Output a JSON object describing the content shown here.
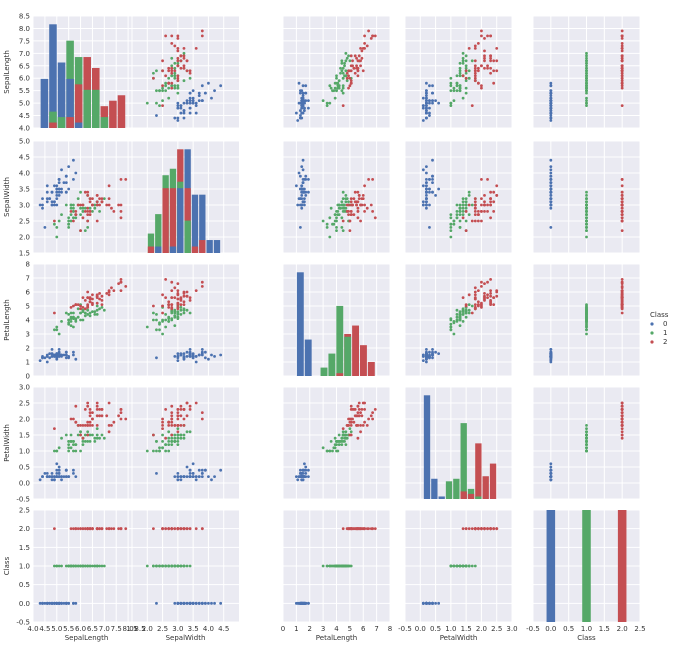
{
  "chart_data": {
    "type": "scatter",
    "title": "",
    "variables": [
      "SepalLength",
      "SepalWidth",
      "PetalLength",
      "PetalWidth",
      "Class"
    ],
    "axes": {
      "SepalLength": {
        "label": "SepalLength",
        "lim": [
          4.0,
          8.5
        ],
        "ticks": [
          4.0,
          4.5,
          5.0,
          5.5,
          6.0,
          6.5,
          7.0,
          7.5,
          8.0,
          8.5
        ],
        "tick_labels": [
          "4.0",
          "4.5",
          "5.0",
          "5.5",
          "6.0",
          "6.5",
          "7.0",
          "7.5",
          "8.0",
          "8.5"
        ]
      },
      "SepalWidth": {
        "label": "SepalWidth",
        "lim": [
          1.5,
          5.0
        ],
        "ticks": [
          1.5,
          2.0,
          2.5,
          3.0,
          3.5,
          4.0,
          4.5,
          5.0
        ],
        "tick_labels": [
          "1.5",
          "2.0",
          "2.5",
          "3.0",
          "3.5",
          "4.0",
          "4.5",
          "5.0"
        ],
        "x_ticks": [
          1.5,
          2.0,
          2.5,
          3.0,
          3.5,
          4.0,
          4.5
        ],
        "x_tick_labels": [
          "1.5",
          "2.0",
          "2.5",
          "3.0",
          "3.5",
          "4.0",
          "4.5"
        ]
      },
      "PetalLength": {
        "label": "PetalLength",
        "lim": [
          0,
          8
        ],
        "ticks": [
          0,
          1,
          2,
          3,
          4,
          5,
          6,
          7,
          8
        ],
        "tick_labels": [
          "0",
          "1",
          "2",
          "3",
          "4",
          "5",
          "6",
          "7",
          "8"
        ]
      },
      "PetalWidth": {
        "label": "PetalWidth",
        "lim": [
          -0.5,
          3.0
        ],
        "ticks": [
          -0.5,
          0.0,
          0.5,
          1.0,
          1.5,
          2.0,
          2.5,
          3.0
        ],
        "tick_labels": [
          "-0.5",
          "0.0",
          "0.5",
          "1.0",
          "1.5",
          "2.0",
          "2.5",
          "3.0"
        ]
      },
      "Class": {
        "label": "Class",
        "lim": [
          -0.5,
          2.5
        ],
        "ticks": [
          -0.5,
          0.0,
          0.5,
          1.0,
          1.5,
          2.0,
          2.5
        ],
        "tick_labels": [
          "-0.5",
          "0.0",
          "0.5",
          "1.0",
          "1.5",
          "2.0",
          "2.5"
        ]
      }
    },
    "series": [
      {
        "name": "0",
        "color": "#4c72b0",
        "points": [
          [
            5.1,
            3.5,
            1.4,
            0.2
          ],
          [
            4.9,
            3.0,
            1.4,
            0.2
          ],
          [
            4.7,
            3.2,
            1.3,
            0.2
          ],
          [
            4.6,
            3.1,
            1.5,
            0.2
          ],
          [
            5.0,
            3.6,
            1.4,
            0.2
          ],
          [
            5.4,
            3.9,
            1.7,
            0.4
          ],
          [
            4.6,
            3.4,
            1.4,
            0.3
          ],
          [
            5.0,
            3.4,
            1.5,
            0.2
          ],
          [
            4.4,
            2.9,
            1.4,
            0.2
          ],
          [
            4.9,
            3.1,
            1.5,
            0.1
          ],
          [
            5.4,
            3.7,
            1.5,
            0.2
          ],
          [
            4.8,
            3.4,
            1.6,
            0.2
          ],
          [
            4.8,
            3.0,
            1.4,
            0.1
          ],
          [
            4.3,
            3.0,
            1.1,
            0.1
          ],
          [
            5.8,
            4.0,
            1.2,
            0.2
          ],
          [
            5.7,
            4.4,
            1.5,
            0.4
          ],
          [
            5.4,
            3.9,
            1.3,
            0.4
          ],
          [
            5.1,
            3.5,
            1.4,
            0.3
          ],
          [
            5.7,
            3.8,
            1.7,
            0.3
          ],
          [
            5.1,
            3.8,
            1.5,
            0.3
          ],
          [
            5.4,
            3.4,
            1.7,
            0.2
          ],
          [
            5.1,
            3.7,
            1.5,
            0.4
          ],
          [
            4.6,
            3.6,
            1.0,
            0.2
          ],
          [
            5.1,
            3.3,
            1.7,
            0.5
          ],
          [
            4.8,
            3.4,
            1.9,
            0.2
          ],
          [
            5.0,
            3.0,
            1.6,
            0.2
          ],
          [
            5.0,
            3.4,
            1.6,
            0.4
          ],
          [
            5.2,
            3.5,
            1.5,
            0.2
          ],
          [
            5.2,
            3.4,
            1.4,
            0.2
          ],
          [
            4.7,
            3.2,
            1.6,
            0.2
          ],
          [
            4.8,
            3.1,
            1.6,
            0.2
          ],
          [
            5.4,
            3.4,
            1.5,
            0.4
          ],
          [
            5.2,
            4.1,
            1.5,
            0.1
          ],
          [
            5.5,
            4.2,
            1.4,
            0.2
          ],
          [
            4.9,
            3.1,
            1.5,
            0.2
          ],
          [
            5.0,
            3.2,
            1.2,
            0.2
          ],
          [
            5.5,
            3.5,
            1.3,
            0.2
          ],
          [
            4.9,
            3.6,
            1.4,
            0.1
          ],
          [
            4.4,
            3.0,
            1.3,
            0.2
          ],
          [
            5.1,
            3.4,
            1.5,
            0.2
          ],
          [
            5.0,
            3.5,
            1.3,
            0.3
          ],
          [
            4.5,
            2.3,
            1.3,
            0.3
          ],
          [
            4.4,
            3.2,
            1.3,
            0.2
          ],
          [
            5.0,
            3.5,
            1.6,
            0.6
          ],
          [
            5.1,
            3.8,
            1.9,
            0.4
          ],
          [
            4.8,
            3.0,
            1.4,
            0.3
          ],
          [
            5.1,
            3.8,
            1.6,
            0.2
          ],
          [
            4.6,
            3.2,
            1.4,
            0.2
          ],
          [
            5.3,
            3.7,
            1.5,
            0.2
          ],
          [
            5.0,
            3.3,
            1.4,
            0.2
          ]
        ]
      },
      {
        "name": "1",
        "color": "#55a868",
        "points": [
          [
            7.0,
            3.2,
            4.7,
            1.4
          ],
          [
            6.4,
            3.2,
            4.5,
            1.5
          ],
          [
            6.9,
            3.1,
            4.9,
            1.5
          ],
          [
            5.5,
            2.3,
            4.0,
            1.3
          ],
          [
            6.5,
            2.8,
            4.6,
            1.5
          ],
          [
            5.7,
            2.8,
            4.5,
            1.3
          ],
          [
            6.3,
            3.3,
            4.7,
            1.6
          ],
          [
            4.9,
            2.4,
            3.3,
            1.0
          ],
          [
            6.6,
            2.9,
            4.6,
            1.3
          ],
          [
            5.2,
            2.7,
            3.9,
            1.4
          ],
          [
            5.0,
            2.0,
            3.5,
            1.0
          ],
          [
            5.9,
            3.0,
            4.2,
            1.5
          ],
          [
            6.0,
            2.2,
            4.0,
            1.0
          ],
          [
            6.1,
            2.9,
            4.7,
            1.4
          ],
          [
            5.6,
            2.9,
            3.6,
            1.3
          ],
          [
            6.7,
            3.1,
            4.4,
            1.4
          ],
          [
            5.6,
            3.0,
            4.5,
            1.5
          ],
          [
            5.8,
            2.7,
            4.1,
            1.0
          ],
          [
            6.2,
            2.2,
            4.5,
            1.5
          ],
          [
            5.6,
            2.5,
            3.9,
            1.1
          ],
          [
            5.9,
            3.2,
            4.8,
            1.8
          ],
          [
            6.1,
            2.8,
            4.0,
            1.3
          ],
          [
            6.3,
            2.5,
            4.9,
            1.5
          ],
          [
            6.1,
            2.8,
            4.7,
            1.2
          ],
          [
            6.4,
            2.9,
            4.3,
            1.3
          ],
          [
            6.6,
            3.0,
            4.4,
            1.4
          ],
          [
            6.8,
            2.8,
            4.8,
            1.4
          ],
          [
            6.7,
            3.0,
            5.0,
            1.7
          ],
          [
            6.0,
            2.9,
            4.5,
            1.5
          ],
          [
            5.7,
            2.6,
            3.5,
            1.0
          ],
          [
            5.5,
            2.4,
            3.8,
            1.1
          ],
          [
            5.5,
            2.4,
            3.7,
            1.0
          ],
          [
            5.8,
            2.7,
            3.9,
            1.2
          ],
          [
            6.0,
            2.7,
            5.1,
            1.6
          ],
          [
            5.4,
            3.0,
            4.5,
            1.5
          ],
          [
            6.0,
            3.4,
            4.5,
            1.6
          ],
          [
            6.7,
            3.1,
            4.7,
            1.5
          ],
          [
            6.3,
            2.3,
            4.4,
            1.3
          ],
          [
            5.6,
            3.0,
            4.1,
            1.3
          ],
          [
            5.5,
            2.5,
            4.0,
            1.3
          ],
          [
            5.5,
            2.6,
            4.4,
            1.2
          ],
          [
            6.1,
            3.0,
            4.6,
            1.4
          ],
          [
            5.8,
            2.6,
            4.0,
            1.2
          ],
          [
            5.0,
            2.3,
            3.3,
            1.0
          ],
          [
            5.6,
            2.7,
            4.2,
            1.3
          ],
          [
            5.7,
            3.0,
            4.2,
            1.2
          ],
          [
            5.7,
            2.9,
            4.2,
            1.3
          ],
          [
            6.2,
            2.9,
            4.3,
            1.3
          ],
          [
            5.1,
            2.5,
            3.0,
            1.1
          ],
          [
            5.7,
            2.8,
            4.1,
            1.3
          ]
        ]
      },
      {
        "name": "2",
        "color": "#c44e52",
        "points": [
          [
            6.3,
            3.3,
            6.0,
            2.5
          ],
          [
            5.8,
            2.7,
            5.1,
            1.9
          ],
          [
            7.1,
            3.0,
            5.9,
            2.1
          ],
          [
            6.3,
            2.9,
            5.6,
            1.8
          ],
          [
            6.5,
            3.0,
            5.8,
            2.2
          ],
          [
            7.6,
            3.0,
            6.6,
            2.1
          ],
          [
            4.9,
            2.5,
            4.5,
            1.7
          ],
          [
            7.3,
            2.9,
            6.3,
            1.8
          ],
          [
            6.7,
            2.5,
            5.8,
            1.8
          ],
          [
            7.2,
            3.6,
            6.1,
            2.5
          ],
          [
            6.5,
            3.2,
            5.1,
            2.0
          ],
          [
            6.4,
            2.7,
            5.3,
            1.9
          ],
          [
            6.8,
            3.0,
            5.5,
            2.1
          ],
          [
            5.7,
            2.5,
            5.0,
            2.0
          ],
          [
            5.8,
            2.8,
            5.1,
            2.4
          ],
          [
            6.4,
            3.2,
            5.3,
            2.3
          ],
          [
            6.5,
            3.0,
            5.5,
            1.8
          ],
          [
            7.7,
            3.8,
            6.7,
            2.2
          ],
          [
            7.7,
            2.6,
            6.9,
            2.3
          ],
          [
            6.0,
            2.2,
            5.0,
            1.5
          ],
          [
            6.9,
            3.2,
            5.7,
            2.3
          ],
          [
            5.6,
            2.8,
            4.9,
            2.0
          ],
          [
            7.7,
            2.8,
            6.7,
            2.0
          ],
          [
            6.3,
            2.7,
            4.9,
            1.8
          ],
          [
            6.7,
            3.3,
            5.7,
            2.1
          ],
          [
            7.2,
            3.2,
            6.0,
            1.8
          ],
          [
            6.2,
            2.8,
            4.8,
            1.8
          ],
          [
            6.1,
            3.0,
            4.9,
            1.8
          ],
          [
            6.4,
            2.8,
            5.6,
            2.1
          ],
          [
            7.2,
            3.0,
            5.8,
            1.6
          ],
          [
            7.4,
            2.8,
            6.1,
            1.9
          ],
          [
            7.9,
            3.8,
            6.4,
            2.0
          ],
          [
            6.4,
            2.8,
            5.6,
            2.2
          ],
          [
            6.3,
            2.8,
            5.1,
            1.5
          ],
          [
            6.1,
            2.6,
            5.6,
            1.4
          ],
          [
            7.7,
            3.0,
            6.1,
            2.3
          ],
          [
            6.3,
            3.4,
            5.6,
            2.4
          ],
          [
            6.4,
            3.1,
            5.5,
            1.8
          ],
          [
            6.0,
            3.0,
            4.8,
            1.8
          ],
          [
            6.9,
            3.1,
            5.4,
            2.1
          ],
          [
            6.7,
            3.1,
            5.6,
            2.4
          ],
          [
            6.9,
            3.1,
            5.1,
            2.3
          ],
          [
            5.8,
            2.7,
            5.1,
            1.9
          ],
          [
            6.8,
            3.2,
            5.9,
            2.3
          ],
          [
            6.7,
            3.3,
            5.7,
            2.5
          ],
          [
            6.7,
            3.0,
            5.2,
            2.3
          ],
          [
            6.3,
            2.5,
            5.0,
            1.9
          ],
          [
            6.5,
            3.0,
            5.2,
            2.0
          ],
          [
            6.2,
            3.4,
            5.4,
            2.3
          ],
          [
            5.9,
            3.0,
            5.1,
            1.8
          ]
        ]
      }
    ],
    "legend": {
      "title": "Class",
      "entries": [
        "0",
        "1",
        "2"
      ],
      "placement": "right"
    },
    "grid": true
  }
}
